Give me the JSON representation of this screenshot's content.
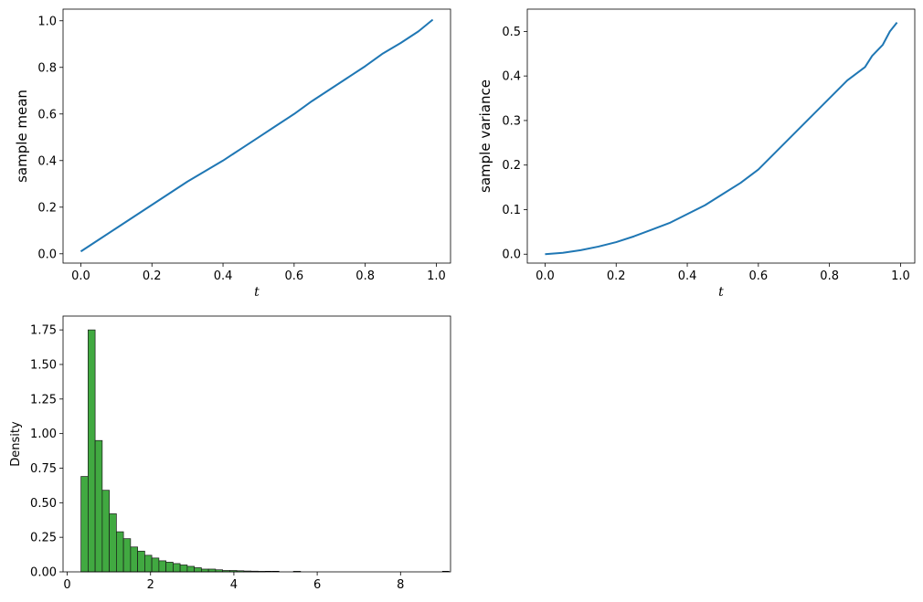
{
  "chart_data": [
    {
      "type": "line",
      "xlabel": "t",
      "ylabel": "sample mean",
      "xlim": [
        -0.05,
        1.04
      ],
      "ylim": [
        -0.04,
        1.05
      ],
      "xticks": [
        "0.0",
        "0.2",
        "0.4",
        "0.6",
        "0.8",
        "1.0"
      ],
      "yticks": [
        "0.0",
        "0.2",
        "0.4",
        "0.6",
        "0.8",
        "1.0"
      ],
      "color": "#1f77b4",
      "series": [
        {
          "x": [
            0.0,
            0.05,
            0.1,
            0.15,
            0.2,
            0.25,
            0.3,
            0.35,
            0.4,
            0.45,
            0.5,
            0.55,
            0.6,
            0.65,
            0.7,
            0.75,
            0.8,
            0.85,
            0.9,
            0.95,
            0.99
          ],
          "values": [
            0.01,
            0.06,
            0.11,
            0.16,
            0.21,
            0.26,
            0.31,
            0.355,
            0.4,
            0.45,
            0.5,
            0.55,
            0.6,
            0.655,
            0.705,
            0.755,
            0.805,
            0.86,
            0.905,
            0.955,
            1.005
          ]
        }
      ]
    },
    {
      "type": "line",
      "xlabel": "t",
      "ylabel": "sample variance",
      "xlim": [
        -0.05,
        1.04
      ],
      "ylim": [
        -0.02,
        0.55
      ],
      "xticks": [
        "0.0",
        "0.2",
        "0.4",
        "0.6",
        "0.8",
        "1.0"
      ],
      "yticks": [
        "0.0",
        "0.1",
        "0.2",
        "0.3",
        "0.4",
        "0.5"
      ],
      "color": "#1f77b4",
      "series": [
        {
          "x": [
            0.0,
            0.05,
            0.1,
            0.15,
            0.2,
            0.25,
            0.3,
            0.35,
            0.4,
            0.45,
            0.5,
            0.55,
            0.6,
            0.65,
            0.7,
            0.75,
            0.8,
            0.85,
            0.9,
            0.92,
            0.95,
            0.97,
            0.99
          ],
          "values": [
            0.0,
            0.003,
            0.009,
            0.017,
            0.027,
            0.04,
            0.055,
            0.07,
            0.09,
            0.11,
            0.135,
            0.16,
            0.19,
            0.23,
            0.27,
            0.31,
            0.35,
            0.39,
            0.42,
            0.445,
            0.47,
            0.5,
            0.52
          ]
        }
      ]
    },
    {
      "type": "bar",
      "subtype": "histogram",
      "xlabel": "",
      "ylabel": "Density",
      "xlim": [
        -0.1,
        9.2
      ],
      "ylim": [
        0,
        1.85
      ],
      "xticks": [
        "0",
        "2",
        "4",
        "6",
        "8"
      ],
      "yticks": [
        "0.00",
        "0.25",
        "0.50",
        "0.75",
        "1.00",
        "1.25",
        "1.50",
        "1.75"
      ],
      "color": "#2ca02c",
      "bin_start": 0.33,
      "bin_width": 0.17,
      "values": [
        0.69,
        1.75,
        0.95,
        0.59,
        0.42,
        0.29,
        0.24,
        0.18,
        0.15,
        0.12,
        0.1,
        0.08,
        0.07,
        0.06,
        0.05,
        0.04,
        0.03,
        0.02,
        0.02,
        0.015,
        0.01,
        0.01,
        0.008,
        0.006,
        0.005,
        0.004,
        0.003,
        0.002,
        0.0,
        0.0,
        0.004,
        0.0,
        0.0,
        0.0,
        0.0,
        0.0,
        0.0,
        0.0,
        0.0,
        0.0,
        0.0,
        0.0,
        0.0,
        0.0,
        0.0,
        0.0,
        0.0,
        0.0,
        0.0,
        0.0,
        0.0,
        0.002
      ]
    }
  ]
}
